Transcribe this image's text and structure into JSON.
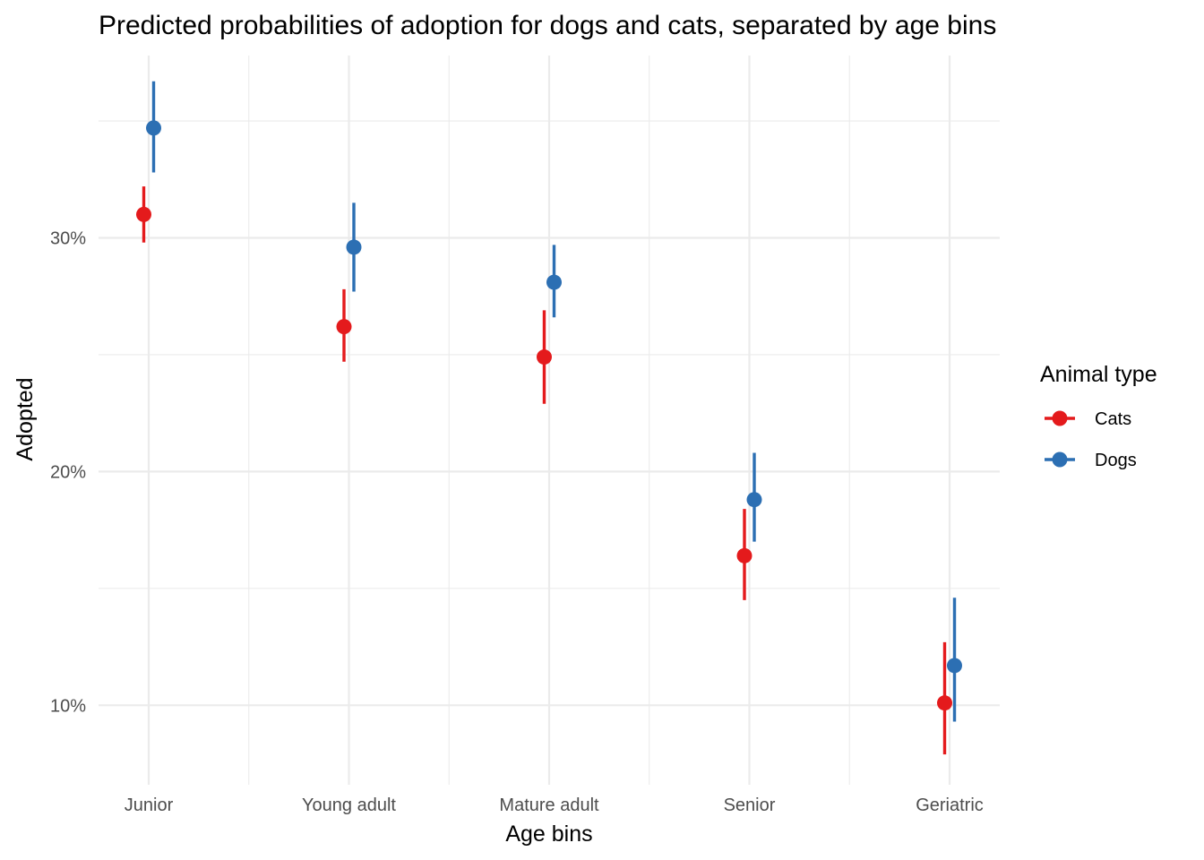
{
  "chart_data": {
    "type": "scatter",
    "title": "Predicted probabilities of adoption for dogs and cats, separated by age bins",
    "xlabel": "Age bins",
    "ylabel": "Adopted",
    "categories": [
      "Junior",
      "Young adult",
      "Mature adult",
      "Senior",
      "Geriatric"
    ],
    "y_ticks": [
      10,
      20,
      30
    ],
    "y_tick_labels": [
      "10%",
      "20%",
      "30%"
    ],
    "ylim": [
      6.6,
      37.8
    ],
    "y_unit": "percent",
    "grid": true,
    "legend": {
      "title": "Animal type",
      "position": "right"
    },
    "series": [
      {
        "name": "Cats",
        "color": "#e41a1c",
        "values": [
          31.0,
          26.2,
          24.9,
          16.4,
          10.1
        ],
        "lower": [
          29.8,
          24.7,
          22.9,
          14.5,
          7.9
        ],
        "upper": [
          32.2,
          27.8,
          26.9,
          18.4,
          12.7
        ]
      },
      {
        "name": "Dogs",
        "color": "#2c6fb3",
        "values": [
          34.7,
          29.6,
          28.1,
          18.8,
          11.7
        ],
        "lower": [
          32.8,
          27.7,
          26.6,
          17.0,
          9.3
        ],
        "upper": [
          36.7,
          31.5,
          29.7,
          20.8,
          14.6
        ]
      }
    ]
  }
}
